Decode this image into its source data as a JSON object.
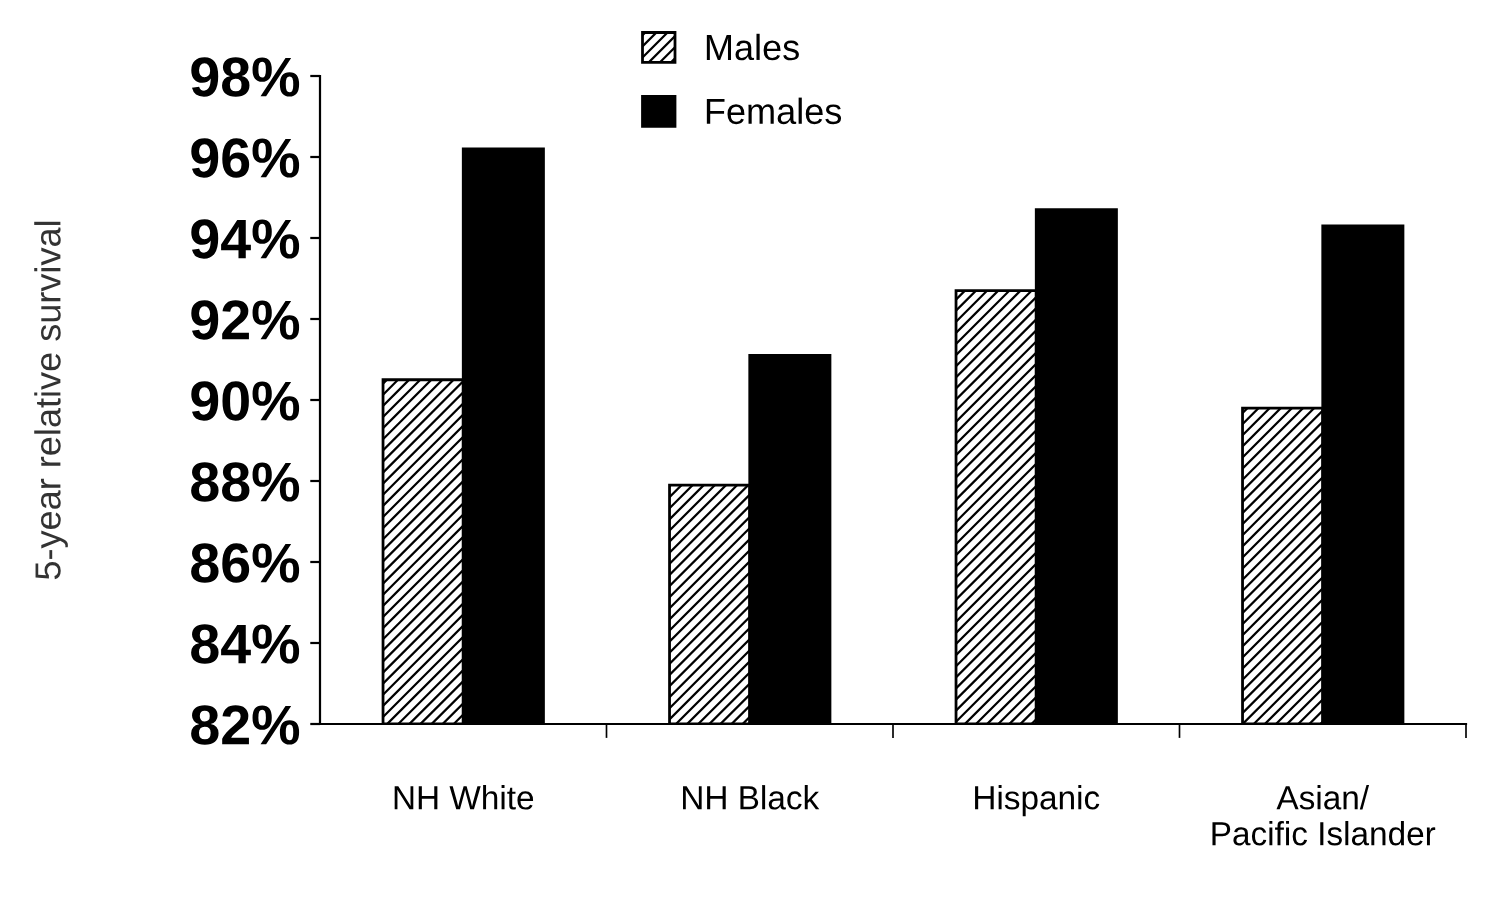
{
  "chart_data": {
    "type": "bar",
    "ylabel": "5-year relative survival",
    "categories": [
      "NH White",
      "NH Black",
      "Hispanic",
      "Asian/\nPacific Islander"
    ],
    "series": [
      {
        "name": "Males",
        "color": "#000000",
        "values": [
          90.5,
          87.9,
          92.7,
          89.8
        ]
      },
      {
        "name": "Females",
        "color": "#000000",
        "values": [
          96.2,
          91.1,
          94.7,
          94.3
        ]
      }
    ],
    "ylim": [
      82,
      98
    ],
    "yticks": [
      {
        "value": 82,
        "label": "82%"
      },
      {
        "value": 84,
        "label": "84%"
      },
      {
        "value": 86,
        "label": "86%"
      },
      {
        "value": 88,
        "label": "88%"
      },
      {
        "value": 90,
        "label": "90%"
      },
      {
        "value": 92,
        "label": "92%"
      },
      {
        "value": 94,
        "label": "94%"
      },
      {
        "value": 96,
        "label": "96%"
      },
      {
        "value": 98,
        "label": "98%"
      }
    ],
    "grid": false,
    "legend": "top"
  }
}
